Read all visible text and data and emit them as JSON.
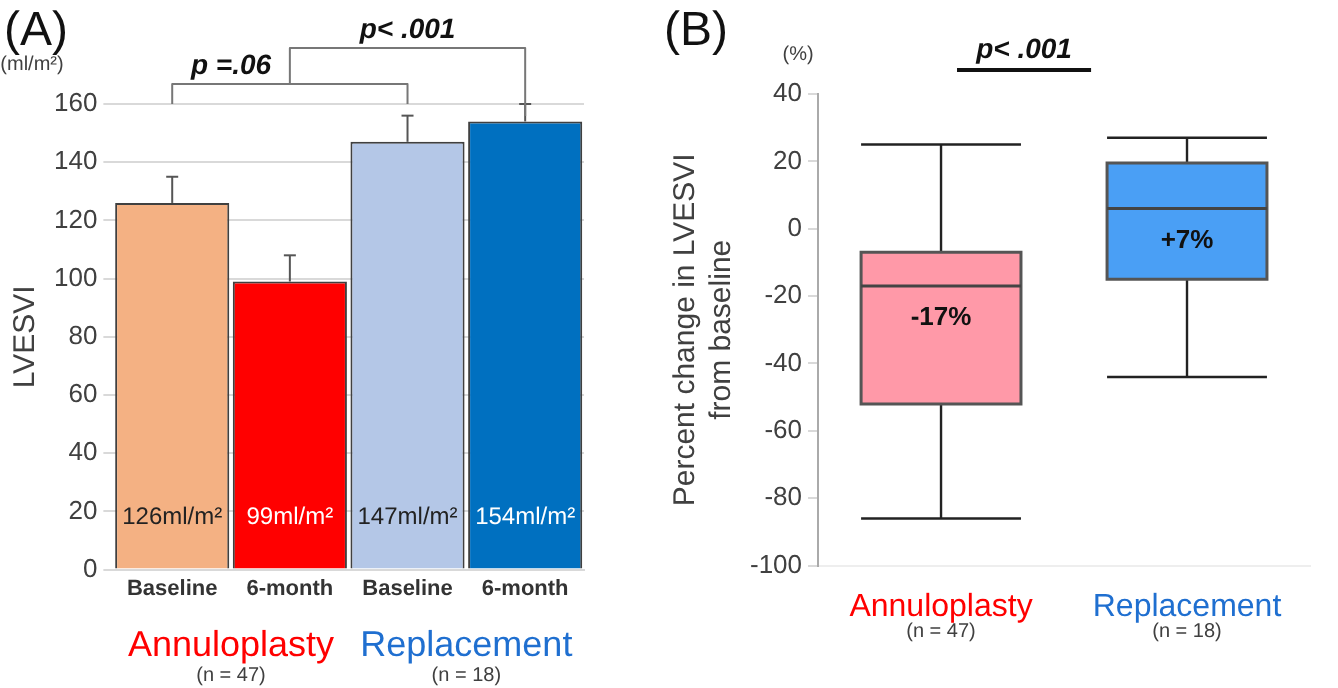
{
  "chart_data": [
    {
      "type": "bar",
      "title": "(A)",
      "ylabel": "LVESVI",
      "categories": [
        "Baseline",
        "6-month",
        "Baseline",
        "6-month"
      ],
      "values": [
        126,
        99,
        147,
        154
      ],
      "colors": [
        "#f4b183",
        "#ff0000",
        "#b4c7e7",
        "#0070c0"
      ],
      "errors": [
        [
          126,
          135
        ],
        [
          99,
          108
        ],
        [
          147,
          156
        ],
        [
          154,
          160
        ]
      ],
      "value_labels": [
        "126ml/m²",
        "99ml/m²",
        "147ml/m²",
        "154ml/m²"
      ],
      "ylim": [
        0,
        160
      ],
      "yticks": [
        0,
        20,
        40,
        60,
        80,
        100,
        120,
        140,
        160
      ],
      "grid": "y",
      "annotations": [
        "(ml/m²)",
        "p =.06",
        "p< .001",
        "Annuloplasty",
        "(n = 47)",
        "Replacement",
        "(n = 18)"
      ]
    },
    {
      "type": "box",
      "title": "(B)",
      "ylabel": "Percent change in LVESVI\nfrom baseline",
      "categories": [
        "Annuloplasty",
        "Replacement"
      ],
      "boxes": [
        {
          "low": -86,
          "q1": -52,
          "median": -17,
          "q3": -7,
          "high": 25
        },
        {
          "low": -44,
          "q1": -15,
          "median": 6,
          "q3": 19.5,
          "high": 27
        }
      ],
      "colors": [
        "#ff99a8",
        "#4a9ff5"
      ],
      "ylim": [
        -100,
        40
      ],
      "yticks": [
        -100,
        -80,
        -60,
        -40,
        -20,
        0,
        20,
        40
      ],
      "annotations": [
        "(%)",
        "p< .001",
        {
          "text": "-17%",
          "x": "Annuloplasty",
          "y": -17
        },
        {
          "text": "+7%",
          "x": "Replacement",
          "y": 6
        },
        "(n = 47)",
        "(n = 18)"
      ]
    }
  ]
}
